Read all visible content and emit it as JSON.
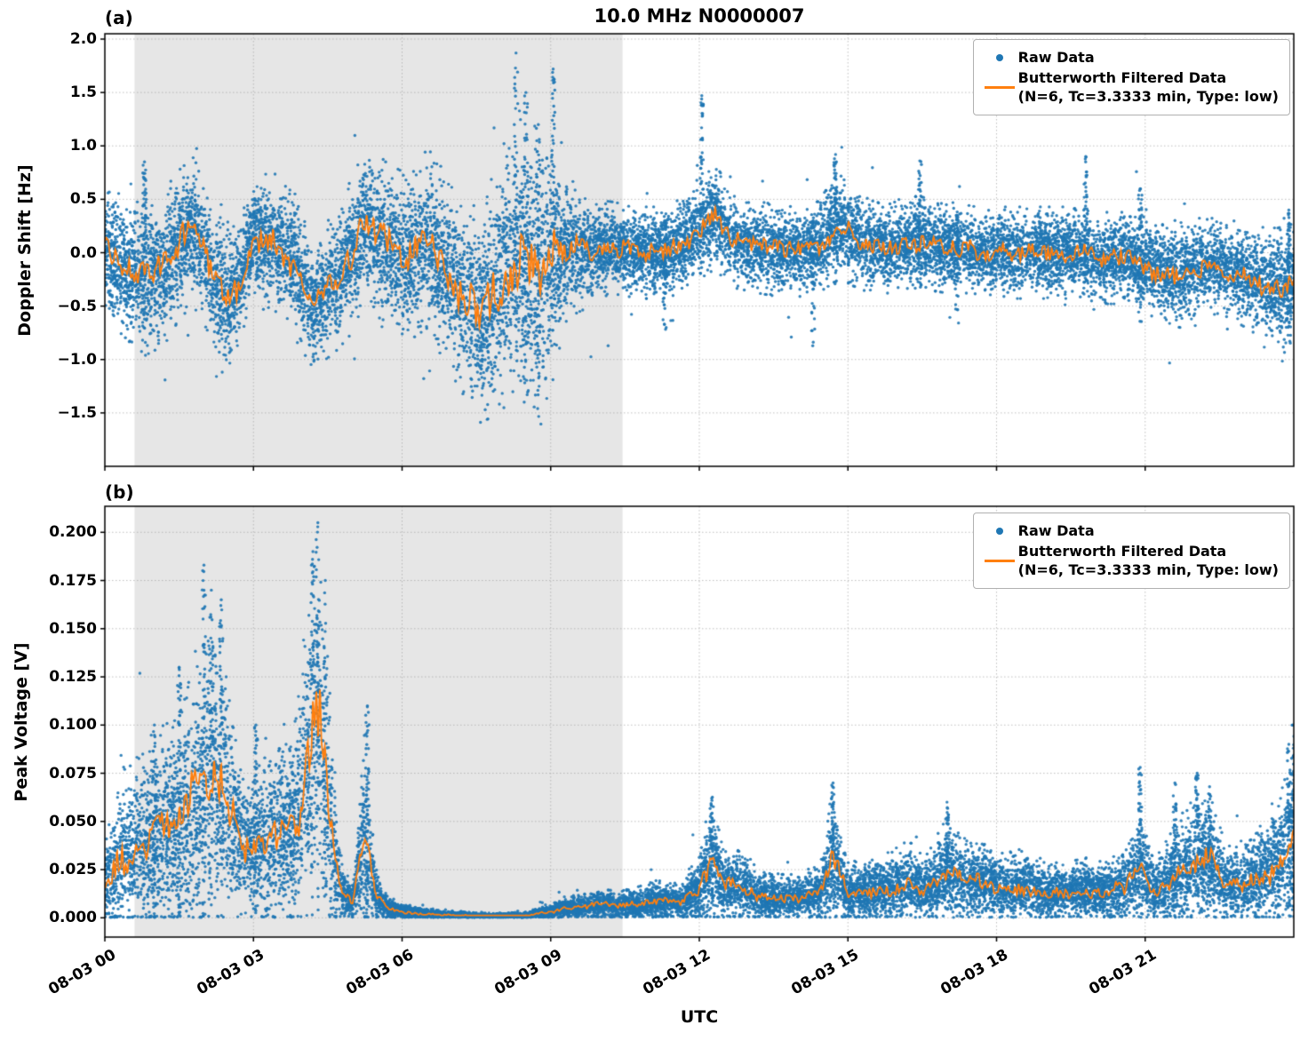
{
  "figure": {
    "title": "10.0 MHz N0000007",
    "xlabel": "UTC",
    "panel_a_label": "(a)",
    "panel_b_label": "(b)"
  },
  "legend": {
    "raw_label": "Raw Data",
    "filtered_label_line1": "Butterworth Filtered Data",
    "filtered_label_line2": "(N=6, Tc=3.3333 min, Type: low)"
  },
  "colors": {
    "raw": "#1f77b4",
    "filtered": "#ff7f0e",
    "shade": "#e6e6e6",
    "grid": "#9e9e9e",
    "spine": "#000000"
  },
  "chart_data": [
    {
      "type": "scatter",
      "panel": "a",
      "title": "10.0 MHz N0000007",
      "ylabel": "Doppler Shift [Hz]",
      "xlabel": "UTC",
      "xlim_hours": [
        0,
        24
      ],
      "x_tick_hours": [
        0,
        3,
        6,
        9,
        12,
        15,
        18,
        21
      ],
      "x_tick_labels": [
        "08-03 00",
        "08-03 03",
        "08-03 06",
        "08-03 09",
        "08-03 12",
        "08-03 15",
        "08-03 18",
        "08-03 21"
      ],
      "ylim": [
        -2.0,
        2.05
      ],
      "y_ticks": [
        2.0,
        1.5,
        1.0,
        0.5,
        0.0,
        -0.5,
        -1.0,
        -1.5
      ],
      "y_tick_labels": [
        "2.0",
        "1.5",
        "1.0",
        "0.5",
        "0.0",
        "−0.5",
        "−1.0",
        "−1.5"
      ],
      "grid": true,
      "legend_position": "upper right",
      "shaded_region_hours": [
        0.6,
        10.45
      ],
      "series": [
        {
          "name": "Raw Data",
          "plot": "scatter",
          "color": "#1f77b4"
        },
        {
          "name": "Butterworth Filtered Data (N=6, Tc=3.3333 min, Type: low)",
          "plot": "line",
          "color": "#ff7f0e"
        }
      ],
      "envelope_t_mean_spread": [
        [
          0.0,
          0.05,
          0.45
        ],
        [
          0.4,
          -0.15,
          0.45
        ],
        [
          0.8,
          -0.25,
          0.5
        ],
        [
          1.2,
          -0.15,
          0.5
        ],
        [
          1.5,
          0.1,
          0.5
        ],
        [
          1.8,
          0.25,
          0.45
        ],
        [
          2.1,
          -0.1,
          0.5
        ],
        [
          2.4,
          -0.45,
          0.5
        ],
        [
          2.7,
          -0.3,
          0.45
        ],
        [
          3.0,
          0.15,
          0.4
        ],
        [
          3.4,
          0.1,
          0.45
        ],
        [
          3.8,
          -0.05,
          0.5
        ],
        [
          4.2,
          -0.55,
          0.4
        ],
        [
          4.5,
          -0.35,
          0.45
        ],
        [
          4.9,
          -0.1,
          0.5
        ],
        [
          5.3,
          0.3,
          0.5
        ],
        [
          5.7,
          0.05,
          0.55
        ],
        [
          6.1,
          -0.05,
          0.55
        ],
        [
          6.5,
          0.15,
          0.6
        ],
        [
          6.9,
          -0.2,
          0.6
        ],
        [
          7.3,
          -0.45,
          0.65
        ],
        [
          7.6,
          -0.6,
          0.7
        ],
        [
          8.0,
          -0.25,
          0.85
        ],
        [
          8.4,
          0.0,
          0.95
        ],
        [
          8.8,
          -0.25,
          0.95
        ],
        [
          9.1,
          0.0,
          0.7
        ],
        [
          9.4,
          0.05,
          0.45
        ],
        [
          9.8,
          0.0,
          0.35
        ],
        [
          10.2,
          0.05,
          0.3
        ],
        [
          10.8,
          0.0,
          0.3
        ],
        [
          11.4,
          0.0,
          0.3
        ],
        [
          12.0,
          0.2,
          0.35
        ],
        [
          12.3,
          0.35,
          0.35
        ],
        [
          12.7,
          0.1,
          0.3
        ],
        [
          13.2,
          0.05,
          0.3
        ],
        [
          13.8,
          0.0,
          0.3
        ],
        [
          14.4,
          0.05,
          0.3
        ],
        [
          14.8,
          0.25,
          0.35
        ],
        [
          15.2,
          0.1,
          0.3
        ],
        [
          15.8,
          0.05,
          0.3
        ],
        [
          16.4,
          0.1,
          0.3
        ],
        [
          17.0,
          0.05,
          0.3
        ],
        [
          17.6,
          0.0,
          0.3
        ],
        [
          18.2,
          0.0,
          0.3
        ],
        [
          18.8,
          0.0,
          0.3
        ],
        [
          19.4,
          0.0,
          0.3
        ],
        [
          20.0,
          -0.05,
          0.3
        ],
        [
          20.6,
          -0.05,
          0.3
        ],
        [
          21.2,
          -0.15,
          0.32
        ],
        [
          21.7,
          -0.2,
          0.35
        ],
        [
          22.2,
          -0.1,
          0.3
        ],
        [
          22.7,
          -0.15,
          0.32
        ],
        [
          23.2,
          -0.25,
          0.35
        ],
        [
          23.6,
          -0.35,
          0.4
        ],
        [
          24.0,
          -0.3,
          0.4
        ]
      ],
      "spikes_t_lo_hi": [
        [
          0.8,
          -0.2,
          0.85
        ],
        [
          8.3,
          -1.2,
          1.87
        ],
        [
          8.5,
          -1.55,
          1.5
        ],
        [
          8.75,
          -1.8,
          1.2
        ],
        [
          9.05,
          -0.9,
          1.72
        ],
        [
          11.3,
          -0.78,
          0.3
        ],
        [
          12.05,
          -0.1,
          1.47
        ],
        [
          14.3,
          -0.9,
          0.3
        ],
        [
          14.75,
          -0.3,
          0.92
        ],
        [
          16.45,
          -0.35,
          0.86
        ],
        [
          17.2,
          -0.75,
          0.35
        ],
        [
          19.8,
          -0.4,
          0.9
        ],
        [
          20.9,
          -0.7,
          0.6
        ],
        [
          23.9,
          -0.85,
          0.4
        ]
      ],
      "clamp_min": null
    },
    {
      "type": "scatter",
      "panel": "b",
      "ylabel": "Peak Voltage [V]",
      "xlabel": "UTC",
      "xlim_hours": [
        0,
        24
      ],
      "x_tick_hours": [
        0,
        3,
        6,
        9,
        12,
        15,
        18,
        21
      ],
      "x_tick_labels": [
        "08-03 00",
        "08-03 03",
        "08-03 06",
        "08-03 09",
        "08-03 12",
        "08-03 15",
        "08-03 18",
        "08-03 21"
      ],
      "ylim": [
        -0.01,
        0.2135
      ],
      "y_ticks": [
        0.2,
        0.175,
        0.15,
        0.125,
        0.1,
        0.075,
        0.05,
        0.025,
        0.0
      ],
      "y_tick_labels": [
        "0.200",
        "0.175",
        "0.150",
        "0.125",
        "0.100",
        "0.075",
        "0.050",
        "0.025",
        "0.000"
      ],
      "grid": true,
      "legend_position": "upper right",
      "shaded_region_hours": [
        0.6,
        10.45
      ],
      "series": [
        {
          "name": "Raw Data",
          "plot": "scatter",
          "color": "#1f77b4"
        },
        {
          "name": "Butterworth Filtered Data (N=6, Tc=3.3333 min, Type: low)",
          "plot": "line",
          "color": "#ff7f0e"
        }
      ],
      "envelope_t_mean_spread": [
        [
          0.0,
          0.015,
          0.015
        ],
        [
          0.3,
          0.03,
          0.03
        ],
        [
          0.6,
          0.035,
          0.03
        ],
        [
          0.9,
          0.04,
          0.035
        ],
        [
          1.2,
          0.045,
          0.04
        ],
        [
          1.5,
          0.05,
          0.045
        ],
        [
          1.8,
          0.06,
          0.05
        ],
        [
          2.1,
          0.075,
          0.055
        ],
        [
          2.4,
          0.07,
          0.05
        ],
        [
          2.7,
          0.04,
          0.03
        ],
        [
          3.0,
          0.035,
          0.025
        ],
        [
          3.3,
          0.04,
          0.03
        ],
        [
          3.6,
          0.045,
          0.035
        ],
        [
          3.9,
          0.05,
          0.04
        ],
        [
          4.15,
          0.09,
          0.06
        ],
        [
          4.35,
          0.11,
          0.065
        ],
        [
          4.55,
          0.05,
          0.04
        ],
        [
          4.75,
          0.015,
          0.012
        ],
        [
          5.0,
          0.008,
          0.006
        ],
        [
          5.25,
          0.045,
          0.04
        ],
        [
          5.45,
          0.012,
          0.01
        ],
        [
          5.7,
          0.005,
          0.004
        ],
        [
          6.0,
          0.003,
          0.003
        ],
        [
          6.5,
          0.002,
          0.002
        ],
        [
          7.0,
          0.0015,
          0.0015
        ],
        [
          7.5,
          0.001,
          0.001
        ],
        [
          8.0,
          0.001,
          0.001
        ],
        [
          8.5,
          0.0012,
          0.0012
        ],
        [
          9.0,
          0.003,
          0.0025
        ],
        [
          9.3,
          0.005,
          0.004
        ],
        [
          9.7,
          0.006,
          0.005
        ],
        [
          10.0,
          0.007,
          0.005
        ],
        [
          10.4,
          0.006,
          0.005
        ],
        [
          10.8,
          0.007,
          0.006
        ],
        [
          11.2,
          0.009,
          0.007
        ],
        [
          11.6,
          0.008,
          0.006
        ],
        [
          12.0,
          0.015,
          0.012
        ],
        [
          12.25,
          0.03,
          0.022
        ],
        [
          12.5,
          0.015,
          0.012
        ],
        [
          12.8,
          0.018,
          0.014
        ],
        [
          13.1,
          0.012,
          0.01
        ],
        [
          13.5,
          0.01,
          0.008
        ],
        [
          14.0,
          0.01,
          0.008
        ],
        [
          14.45,
          0.013,
          0.01
        ],
        [
          14.7,
          0.032,
          0.024
        ],
        [
          15.0,
          0.013,
          0.01
        ],
        [
          15.4,
          0.014,
          0.011
        ],
        [
          15.8,
          0.015,
          0.012
        ],
        [
          16.2,
          0.018,
          0.014
        ],
        [
          16.6,
          0.015,
          0.012
        ],
        [
          17.0,
          0.024,
          0.018
        ],
        [
          17.4,
          0.018,
          0.014
        ],
        [
          17.8,
          0.018,
          0.014
        ],
        [
          18.2,
          0.015,
          0.012
        ],
        [
          18.6,
          0.016,
          0.013
        ],
        [
          19.0,
          0.013,
          0.01
        ],
        [
          19.4,
          0.013,
          0.01
        ],
        [
          19.8,
          0.014,
          0.011
        ],
        [
          20.2,
          0.013,
          0.01
        ],
        [
          20.6,
          0.016,
          0.013
        ],
        [
          20.9,
          0.028,
          0.022
        ],
        [
          21.2,
          0.014,
          0.011
        ],
        [
          21.6,
          0.022,
          0.018
        ],
        [
          22.0,
          0.028,
          0.022
        ],
        [
          22.3,
          0.03,
          0.022
        ],
        [
          22.6,
          0.018,
          0.014
        ],
        [
          23.0,
          0.018,
          0.014
        ],
        [
          23.4,
          0.022,
          0.018
        ],
        [
          23.8,
          0.032,
          0.026
        ],
        [
          24.0,
          0.045,
          0.035
        ]
      ],
      "spikes_t_lo_hi": [
        [
          1.0,
          0.0,
          0.1
        ],
        [
          1.5,
          0.0,
          0.13
        ],
        [
          2.0,
          0.0,
          0.183
        ],
        [
          2.15,
          0.0,
          0.17
        ],
        [
          2.35,
          0.0,
          0.165
        ],
        [
          3.05,
          0.0,
          0.1
        ],
        [
          4.2,
          0.0,
          0.19
        ],
        [
          4.3,
          0.0,
          0.205
        ],
        [
          4.45,
          0.0,
          0.175
        ],
        [
          5.3,
          0.0,
          0.11
        ],
        [
          12.25,
          0.0,
          0.062
        ],
        [
          14.7,
          0.0,
          0.07
        ],
        [
          17.0,
          0.0,
          0.06
        ],
        [
          20.9,
          0.0,
          0.078
        ],
        [
          21.6,
          0.0,
          0.07
        ],
        [
          22.05,
          0.0,
          0.075
        ],
        [
          22.3,
          0.0,
          0.068
        ],
        [
          23.9,
          0.0,
          0.09
        ],
        [
          23.98,
          0.0,
          0.1
        ]
      ],
      "clamp_min": 0.0002
    }
  ]
}
